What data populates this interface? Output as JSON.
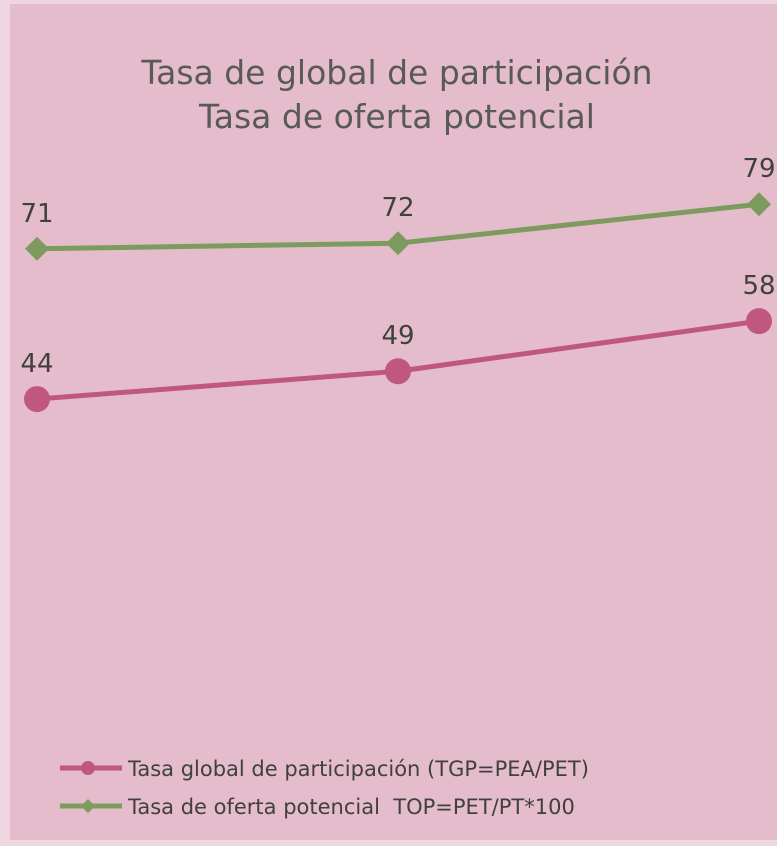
{
  "chart_data": {
    "type": "line",
    "title": [
      "Tasa de global de participación",
      "Tasa de oferta potencial"
    ],
    "categories": [
      null,
      null,
      null
    ],
    "series": [
      {
        "name": "Tasa global de participación (TGP=PEA/PET)",
        "color": "#c0587e",
        "marker": "circle",
        "values": [
          44,
          49,
          58
        ]
      },
      {
        "name": "Tasa de oferta potencial  TOP=PET/PT*100",
        "color": "#7d9b5e",
        "marker": "diamond",
        "values": [
          71,
          72,
          79
        ]
      }
    ],
    "ylim": [
      0,
      90
    ],
    "legend": "bottom"
  }
}
